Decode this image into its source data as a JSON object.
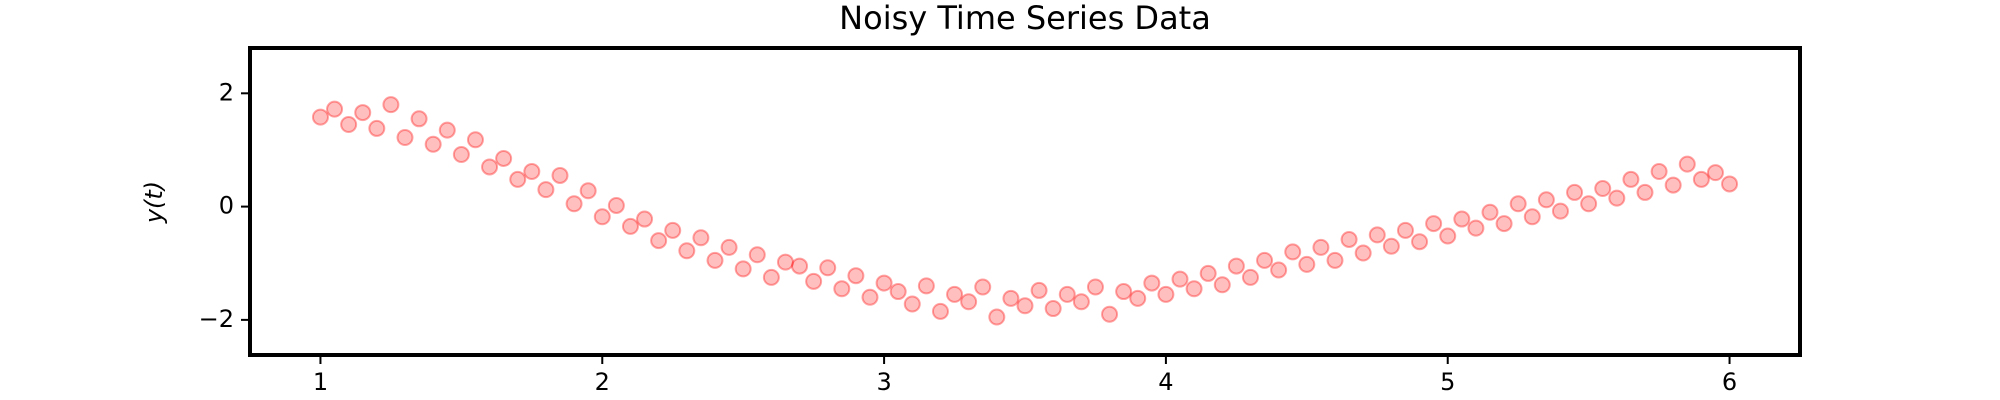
{
  "chart_data": {
    "type": "scatter",
    "title": "Noisy Time Series Data",
    "y_label": "y(t)",
    "color": "#ff0000",
    "x": [
      1.0,
      1.05,
      1.1,
      1.15,
      1.2,
      1.25,
      1.3,
      1.35,
      1.4,
      1.45,
      1.5,
      1.55,
      1.6,
      1.65,
      1.7,
      1.75,
      1.8,
      1.85,
      1.9,
      1.95,
      2.0,
      2.05,
      2.1,
      2.15,
      2.2,
      2.25,
      2.3,
      2.35,
      2.4,
      2.45,
      2.5,
      2.55,
      2.6,
      2.65,
      2.7,
      2.75,
      2.8,
      2.85,
      2.9,
      2.95,
      3.0,
      3.05,
      3.1,
      3.15,
      3.2,
      3.25,
      3.3,
      3.35,
      3.4,
      3.45,
      3.5,
      3.55,
      3.6,
      3.65,
      3.7,
      3.75,
      3.8,
      3.85,
      3.9,
      3.95,
      4.0,
      4.05,
      4.1,
      4.15,
      4.2,
      4.25,
      4.3,
      4.35,
      4.4,
      4.45,
      4.5,
      4.55,
      4.6,
      4.65,
      4.7,
      4.75,
      4.8,
      4.85,
      4.9,
      4.95,
      5.0,
      5.05,
      5.1,
      5.15,
      5.2,
      5.25,
      5.3,
      5.35,
      5.4,
      5.45,
      5.5,
      5.55,
      5.6,
      5.65,
      5.7,
      5.75,
      5.8,
      5.85,
      5.9,
      5.95,
      6.0
    ],
    "values": [
      1.58,
      1.72,
      1.45,
      1.66,
      1.38,
      1.8,
      1.22,
      1.55,
      1.1,
      1.35,
      0.92,
      1.18,
      0.7,
      0.85,
      0.48,
      0.62,
      0.3,
      0.55,
      0.05,
      0.28,
      -0.18,
      0.02,
      -0.35,
      -0.22,
      -0.6,
      -0.42,
      -0.78,
      -0.55,
      -0.95,
      -0.72,
      -1.1,
      -0.85,
      -1.25,
      -0.98,
      -1.05,
      -1.32,
      -1.08,
      -1.45,
      -1.22,
      -1.6,
      -1.35,
      -1.5,
      -1.72,
      -1.4,
      -1.85,
      -1.55,
      -1.68,
      -1.42,
      -1.95,
      -1.62,
      -1.75,
      -1.48,
      -1.8,
      -1.55,
      -1.68,
      -1.42,
      -1.9,
      -1.5,
      -1.62,
      -1.35,
      -1.55,
      -1.28,
      -1.45,
      -1.18,
      -1.38,
      -1.05,
      -1.25,
      -0.95,
      -1.12,
      -0.8,
      -1.02,
      -0.72,
      -0.95,
      -0.58,
      -0.82,
      -0.5,
      -0.7,
      -0.42,
      -0.62,
      -0.3,
      -0.52,
      -0.22,
      -0.38,
      -0.1,
      -0.3,
      0.05,
      -0.18,
      0.12,
      -0.08,
      0.25,
      0.05,
      0.32,
      0.15,
      0.48,
      0.25,
      0.62,
      0.38,
      0.75,
      0.48,
      0.6,
      0.4
    ],
    "xlim": [
      0.75,
      6.25
    ],
    "ylim": [
      -2.62,
      2.8
    ],
    "xticks": [
      1,
      2,
      3,
      4,
      5,
      6
    ],
    "yticks": [
      {
        "value": -2,
        "label": "−2"
      },
      0,
      2
    ]
  }
}
